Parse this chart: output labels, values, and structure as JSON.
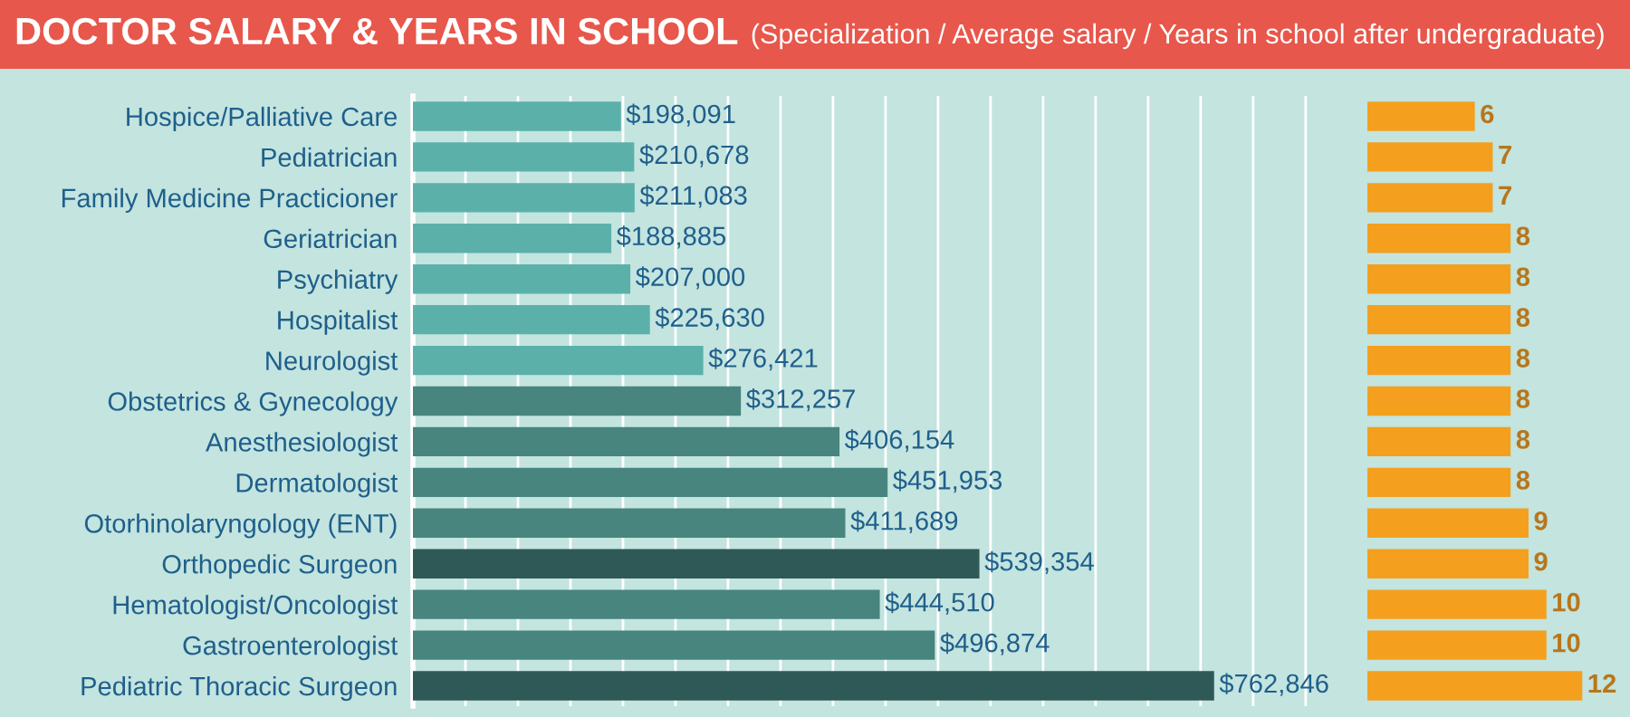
{
  "chart_data": [
    {
      "type": "bar",
      "orientation": "horizontal",
      "title": "DOCTOR SALARY & YEARS IN SCHOOL",
      "subtitle": "(Specialization / Average salary / Years in school after undergraduate)",
      "categories": [
        "Hospice/Palliative Care",
        "Pediatrician",
        "Family Medicine Practicioner",
        "Geriatrician",
        "Psychiatry",
        "Hospitalist",
        "Neurologist",
        "Obstetrics & Gynecology",
        "Anesthesiologist",
        "Dermatologist",
        "Otorhinolaryngology (ENT)",
        "Orthopedic Surgeon",
        "Hematologist/Oncologist",
        "Gastroenterologist",
        "Pediatric Thoracic Surgeon"
      ],
      "values": [
        198091,
        210678,
        211083,
        188885,
        207000,
        225630,
        276421,
        312257,
        406154,
        451953,
        411689,
        539354,
        444510,
        496874,
        762846
      ],
      "value_labels": [
        "$198,091",
        "$210,678",
        "$211,083",
        "$188,885",
        "$207,000",
        "$225,630",
        "$276,421",
        "$312,257",
        "$406,154",
        "$451,953",
        "$411,689",
        "$539,354",
        "$444,510",
        "$496,874",
        "$762,846"
      ],
      "colors": [
        "#5bb1aa",
        "#5bb1aa",
        "#5bb1aa",
        "#5bb1aa",
        "#5bb1aa",
        "#5bb1aa",
        "#5bb1aa",
        "#47857e",
        "#47857e",
        "#47857e",
        "#47857e",
        "#2f5957",
        "#47857e",
        "#47857e",
        "#2f5957"
      ],
      "xticks": [
        {
          "value": 50000,
          "label": null
        },
        {
          "value": 100000,
          "label": null
        },
        {
          "value": 150000,
          "label": null
        },
        {
          "value": 200000,
          "label": null
        },
        {
          "value": 250000,
          "label": null
        },
        {
          "value": 300000,
          "label": null
        },
        {
          "value": 350000,
          "label": null
        },
        {
          "value": 400000,
          "label": null
        },
        {
          "value": 450000,
          "label": null
        },
        {
          "value": 500000,
          "label": null
        },
        {
          "value": 550000,
          "label": null
        },
        {
          "value": 600000,
          "label": null
        },
        {
          "value": 650000,
          "label": null
        },
        {
          "value": 700000,
          "label": null
        },
        {
          "value": 750000,
          "label": null
        },
        {
          "value": 800000,
          "label": null
        },
        {
          "value": 850000,
          "label": null
        }
      ],
      "grid": true,
      "tick_labels": "y"
    },
    {
      "type": "bar",
      "orientation": "horizontal",
      "categories": [
        null,
        null,
        null,
        null,
        null,
        null,
        null,
        null,
        null,
        null,
        null,
        null,
        null,
        null,
        null
      ],
      "values": [
        6,
        7,
        7,
        8,
        8,
        8,
        8,
        8,
        8,
        8,
        9,
        9,
        10,
        10,
        12
      ],
      "color": "#f4a01e",
      "data_labels": true,
      "tick_labels": false
    }
  ]
}
